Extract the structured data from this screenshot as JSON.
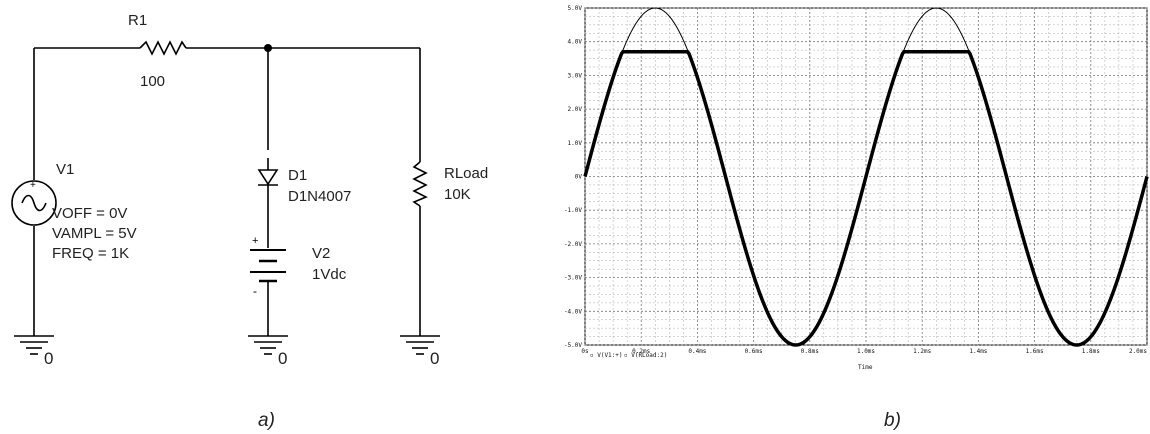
{
  "schematic": {
    "r1": {
      "ref": "R1",
      "value": "100"
    },
    "d1": {
      "ref": "D1",
      "part": "D1N4007"
    },
    "v1": {
      "ref": "V1",
      "voff": "VOFF = 0V",
      "vampl": "VAMPL = 5V",
      "freq": "FREQ = 1K"
    },
    "v2": {
      "ref": "V2",
      "value": "1Vdc",
      "plus": "+",
      "minus": "-"
    },
    "rload": {
      "ref": "RLoad",
      "value": "10K"
    },
    "ground_label": "0",
    "caption": "a)"
  },
  "plot_caption": "b)",
  "chart_data": {
    "type": "line",
    "x_label": "Time",
    "x_unit": "ms",
    "xlim": [
      0,
      2.0
    ],
    "ylim": [
      -5.0,
      5.0
    ],
    "x_ticks": [
      "0s",
      "0.2ms",
      "0.4ms",
      "0.6ms",
      "0.8ms",
      "1.0ms",
      "1.2ms",
      "1.4ms",
      "1.6ms",
      "1.8ms",
      "2.0ms"
    ],
    "y_ticks": [
      "5.0V",
      "4.0V",
      "3.0V",
      "2.0V",
      "1.0V",
      "0V",
      "-1.0V",
      "-2.0V",
      "-3.0V",
      "-4.0V",
      "-5.0V"
    ],
    "grid": true,
    "legend_entries": [
      "V(V1:+)",
      "V(RLoad:2)"
    ],
    "legend_placement": "bottom-left",
    "series": [
      {
        "name": "V(V1:+)",
        "kind": "sine",
        "amplitude": 5,
        "frequency_khz": 1,
        "offset": 0,
        "x": [
          0,
          0.125,
          0.25,
          0.375,
          0.5,
          0.625,
          0.75,
          0.875,
          1.0,
          1.125,
          1.25,
          1.375,
          1.5,
          1.625,
          1.75,
          1.875,
          2.0
        ],
        "y": [
          0,
          3.54,
          5.0,
          3.54,
          0,
          -3.54,
          -5.0,
          -3.54,
          0,
          3.54,
          5.0,
          3.54,
          0,
          -3.54,
          -5.0,
          -3.54,
          0
        ]
      },
      {
        "name": "V(RLoad:2)",
        "kind": "clipped_sine",
        "amplitude": 5,
        "frequency_khz": 1,
        "clip_level": 3.7,
        "x": [
          0,
          0.125,
          0.25,
          0.375,
          0.5,
          0.625,
          0.75,
          0.875,
          1.0,
          1.125,
          1.25,
          1.375,
          1.5,
          1.625,
          1.75,
          1.875,
          2.0
        ],
        "y": [
          0,
          3.54,
          3.7,
          3.54,
          0,
          -3.54,
          -5.0,
          -3.54,
          0,
          3.54,
          3.7,
          3.54,
          0,
          -3.54,
          -5.0,
          -3.54,
          0
        ]
      }
    ]
  }
}
